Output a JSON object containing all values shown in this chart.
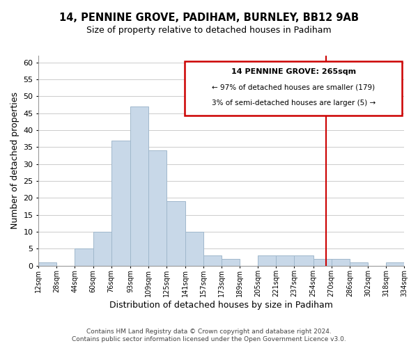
{
  "title": "14, PENNINE GROVE, PADIHAM, BURNLEY, BB12 9AB",
  "subtitle": "Size of property relative to detached houses in Padiham",
  "xlabel": "Distribution of detached houses by size in Padiham",
  "ylabel": "Number of detached properties",
  "bin_edges": [
    12,
    28,
    44,
    60,
    76,
    93,
    109,
    125,
    141,
    157,
    173,
    189,
    205,
    221,
    237,
    254,
    270,
    286,
    302,
    318,
    334
  ],
  "counts": [
    1,
    0,
    5,
    10,
    37,
    47,
    34,
    19,
    10,
    3,
    2,
    0,
    3,
    3,
    3,
    2,
    2,
    1,
    0,
    1
  ],
  "bar_color": "#c8d8e8",
  "bar_edge_color": "#a0b8cc",
  "ylim": [
    0,
    62
  ],
  "yticks": [
    0,
    5,
    10,
    15,
    20,
    25,
    30,
    35,
    40,
    45,
    50,
    55,
    60
  ],
  "property_line_x": 265,
  "property_line_color": "#cc0000",
  "annotation_title": "14 PENNINE GROVE: 265sqm",
  "annotation_line1": "← 97% of detached houses are smaller (179)",
  "annotation_line2": "3% of semi-detached houses are larger (5) →",
  "footer_line1": "Contains HM Land Registry data © Crown copyright and database right 2024.",
  "footer_line2": "Contains public sector information licensed under the Open Government Licence v3.0.",
  "tick_labels": [
    "12sqm",
    "28sqm",
    "44sqm",
    "60sqm",
    "76sqm",
    "93sqm",
    "109sqm",
    "125sqm",
    "141sqm",
    "157sqm",
    "173sqm",
    "189sqm",
    "205sqm",
    "221sqm",
    "237sqm",
    "254sqm",
    "270sqm",
    "286sqm",
    "302sqm",
    "318sqm",
    "334sqm"
  ],
  "grid_color": "#cccccc",
  "background_color": "#ffffff"
}
